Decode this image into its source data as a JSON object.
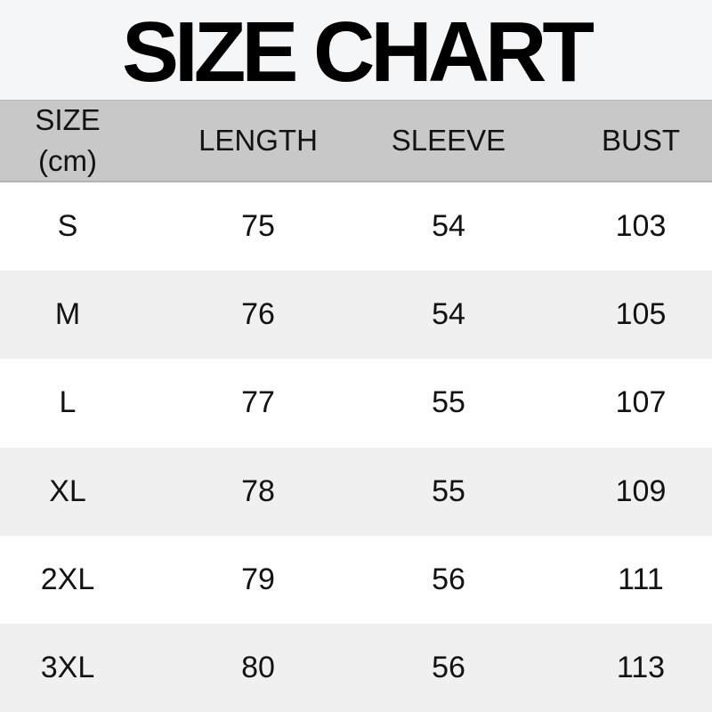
{
  "page_title": "SIZE CHART",
  "colors": {
    "title_bg": "#f5f6f8",
    "header_bg": "#c8c8c8",
    "header_border": "#b3b3b3",
    "row_bg": "#fefefe",
    "row_alt_bg": "#f0f0f0",
    "text": "#121212"
  },
  "table": {
    "header": {
      "col1_line1": "SIZE",
      "col1_line2": "(cm)",
      "col2": "LENGTH",
      "col3": "SLEEVE",
      "col4": "BUST"
    }
  },
  "chart_data": {
    "type": "table",
    "title": "SIZE CHART",
    "columns": [
      "SIZE (cm)",
      "LENGTH",
      "SLEEVE",
      "BUST"
    ],
    "rows": [
      [
        "S",
        75,
        54,
        103
      ],
      [
        "M",
        76,
        54,
        105
      ],
      [
        "L",
        77,
        55,
        107
      ],
      [
        "XL",
        78,
        55,
        109
      ],
      [
        "2XL",
        79,
        56,
        111
      ],
      [
        "3XL",
        80,
        56,
        113
      ]
    ],
    "layout": {
      "unit": "cm",
      "striped": true,
      "column_align": "center"
    }
  }
}
